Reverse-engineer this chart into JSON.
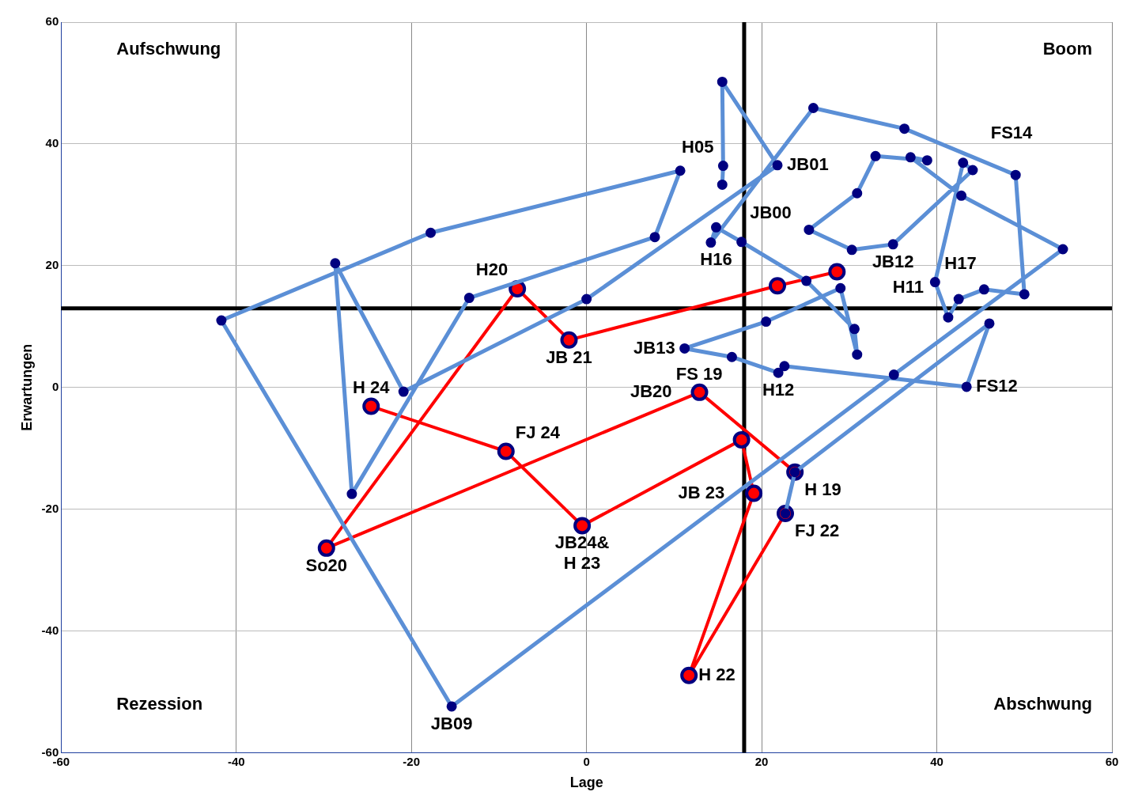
{
  "chart_data": {
    "type": "line",
    "xlabel": "Lage",
    "ylabel": "Erwartungen",
    "xlim": [
      -60,
      60
    ],
    "xticks": [
      -60,
      -40,
      -20,
      0,
      20,
      40,
      60
    ],
    "ylim": [
      -60,
      60
    ],
    "yticks": [
      -60,
      -40,
      -20,
      0,
      20,
      40,
      60
    ],
    "grid": true,
    "legend": false,
    "marker": "circle",
    "line_style": "solid",
    "series": [
      {
        "color": "#5b8fd6",
        "x": [
          15.5,
          15.6,
          15.5,
          21.8,
          0.0,
          -20.9,
          -28.7,
          -26.8,
          -13.4,
          7.8,
          10.7,
          -17.8,
          -41.7,
          -15.4,
          35.1,
          54.4,
          42.8,
          37.0,
          38.9,
          33.0,
          30.9,
          25.4,
          30.3,
          35.0,
          44.1,
          43.0,
          39.8,
          41.3,
          42.5,
          45.4,
          50.0,
          49.0,
          36.3,
          25.9,
          14.2,
          14.8,
          17.7,
          25.1,
          30.6,
          30.9,
          29.0,
          20.5,
          11.2,
          16.6,
          21.9,
          22.6,
          43.4,
          46.0,
          23.8,
          22.7
        ],
        "values": [
          33.3,
          36.4,
          50.2,
          36.5,
          14.5,
          -0.7,
          20.4,
          -17.5,
          14.7,
          24.7,
          35.6,
          25.4,
          11.0,
          -52.4,
          2.1,
          22.7,
          31.5,
          37.8,
          37.3,
          38.0,
          31.9,
          25.9,
          22.6,
          23.5,
          35.7,
          36.9,
          17.3,
          11.5,
          14.5,
          16.1,
          15.3,
          34.9,
          42.5,
          45.9,
          23.8,
          26.3,
          23.9,
          17.5,
          9.6,
          5.4,
          16.3,
          10.8,
          6.4,
          5.0,
          2.4,
          3.5,
          0.1,
          10.5,
          -13.9,
          -20.7
        ]
      },
      {
        "color": "#ff0000",
        "x": [
          23.8,
          12.9,
          -29.7,
          -7.9,
          -2.0,
          21.8,
          28.6,
          null,
          22.7,
          11.7,
          19.1,
          17.7,
          -0.5,
          -9.2,
          -24.6
        ],
        "values": [
          -13.9,
          -0.8,
          -26.4,
          16.2,
          7.8,
          16.7,
          19.0,
          null,
          -20.7,
          -47.3,
          -17.4,
          -8.6,
          -22.7,
          -10.5,
          -3.1
        ]
      }
    ],
    "ref_lines": [
      {
        "axis": "x",
        "value": 18,
        "color": "#000000"
      },
      {
        "axis": "y",
        "value": 13,
        "color": "#000000"
      }
    ],
    "annotations": [
      "Aufschwung",
      "Boom",
      "Rezession",
      "Abschwung",
      {
        "text": "JB00",
        "x": 15.5,
        "y": 33.3
      },
      {
        "text": "H05",
        "x": 15.6,
        "y": 36.4
      },
      {
        "text": "JB01",
        "x": 21.8,
        "y": 36.5
      },
      {
        "text": "H16",
        "x": 17.7,
        "y": 23.9
      },
      {
        "text": "JB12",
        "x": 35.0,
        "y": 23.5
      },
      {
        "text": "H17",
        "x": 39.8,
        "y": 17.3
      },
      {
        "text": "FS14",
        "x": 43.0,
        "y": 36.9
      },
      {
        "text": "H11",
        "x": 41.3,
        "y": 11.5
      },
      {
        "text": "FS 19",
        "x": 16.6,
        "y": 5.0
      },
      {
        "text": "JB13",
        "x": 11.2,
        "y": 6.4
      },
      {
        "text": "H12",
        "x": 21.9,
        "y": 2.4
      },
      {
        "text": "FS12",
        "x": 43.4,
        "y": 0.1
      },
      {
        "text": "H 19",
        "x": 23.8,
        "y": -13.9
      },
      {
        "text": "JB09",
        "x": -15.4,
        "y": -52.4
      },
      {
        "text": "H20",
        "x": -7.9,
        "y": 16.2
      },
      {
        "text": "JB 21",
        "x": -2.0,
        "y": 7.8
      },
      {
        "text": "So20",
        "x": -29.7,
        "y": -26.4
      },
      {
        "text": "JB20",
        "x": 12.9,
        "y": -0.8
      },
      {
        "text": "H 24",
        "x": -24.6,
        "y": -3.1
      },
      {
        "text": "FJ 24",
        "x": -9.2,
        "y": -10.5
      },
      {
        "text": "JB24&\nH 23",
        "x": -0.5,
        "y": -22.7
      },
      {
        "text": "JB 23",
        "x": 19.1,
        "y": -17.4
      },
      {
        "text": "FJ 22",
        "x": 22.7,
        "y": -20.7
      },
      {
        "text": "H 22",
        "x": 11.7,
        "y": -47.3
      }
    ]
  }
}
